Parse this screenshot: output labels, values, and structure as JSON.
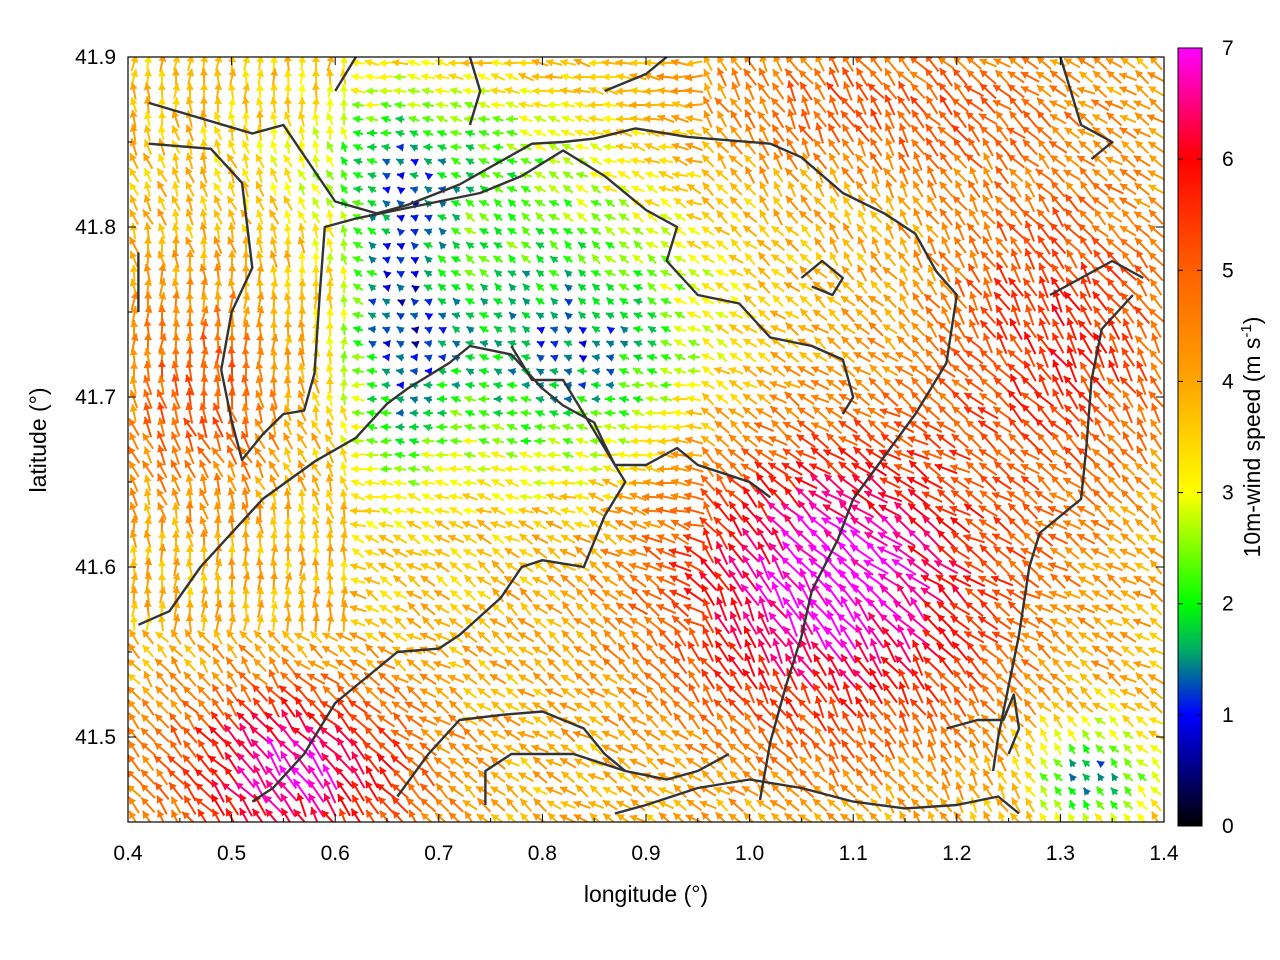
{
  "chart_data": {
    "type": "vector-field",
    "xlabel": "longitude (°)",
    "ylabel": "latitude (°)",
    "xlim": [
      0.4,
      1.4
    ],
    "ylim": [
      41.45,
      41.9
    ],
    "x_ticks": [
      "0.4",
      "0.5",
      "0.6",
      "0.7",
      "0.8",
      "0.9",
      "1.0",
      "1.1",
      "1.2",
      "1.3",
      "1.4"
    ],
    "y_ticks": [
      "41.5",
      "41.6",
      "41.7",
      "41.8",
      "41.9"
    ],
    "grid": false,
    "colorbar": {
      "label": "10m-wind speed (m s",
      "label_sup": "-1",
      "label_end": ")",
      "range": [
        0,
        7
      ],
      "ticks": [
        "0",
        "1",
        "2",
        "3",
        "4",
        "5",
        "6",
        "7"
      ],
      "palette": [
        {
          "value": 0,
          "color": "#000000"
        },
        {
          "value": 1,
          "color": "#0000ff"
        },
        {
          "value": 1.6,
          "color": "#00b060"
        },
        {
          "value": 2,
          "color": "#00ff00"
        },
        {
          "value": 3,
          "color": "#ffff00"
        },
        {
          "value": 4,
          "color": "#ffa500"
        },
        {
          "value": 5,
          "color": "#ff6000"
        },
        {
          "value": 6,
          "color": "#ff0000"
        },
        {
          "value": 7,
          "color": "#ff00ff"
        }
      ]
    },
    "contour_lines": [
      [
        [
          0.42,
          41.873
        ],
        [
          0.52,
          41.855
        ],
        [
          0.55,
          41.86
        ],
        [
          0.6,
          41.815
        ],
        [
          0.64,
          41.808
        ],
        [
          0.67,
          41.813
        ],
        [
          0.72,
          41.825
        ],
        [
          0.79,
          41.849
        ],
        [
          0.82,
          41.85
        ],
        [
          0.85,
          41.852
        ],
        [
          0.89,
          41.858
        ],
        [
          0.94,
          41.853
        ],
        [
          0.98,
          41.851
        ],
        [
          1.02,
          41.849
        ],
        [
          1.05,
          41.841
        ],
        [
          1.09,
          41.82
        ],
        [
          1.13,
          41.808
        ],
        [
          1.16,
          41.796
        ],
        [
          1.18,
          41.774
        ],
        [
          1.2,
          41.76
        ],
        [
          1.19,
          41.72
        ],
        [
          1.16,
          41.69
        ],
        [
          1.13,
          41.665
        ],
        [
          1.1,
          41.64
        ],
        [
          1.085,
          41.616
        ],
        [
          1.06,
          41.586
        ],
        [
          1.05,
          41.559
        ],
        [
          1.035,
          41.53
        ],
        [
          1.02,
          41.497
        ],
        [
          1.01,
          41.463
        ]
      ],
      [
        [
          0.42,
          41.849
        ],
        [
          0.48,
          41.846
        ],
        [
          0.51,
          41.826
        ],
        [
          0.52,
          41.776
        ],
        [
          0.5,
          41.75
        ],
        [
          0.49,
          41.716
        ],
        [
          0.5,
          41.686
        ],
        [
          0.51,
          41.663
        ],
        [
          0.53,
          41.678
        ],
        [
          0.55,
          41.69
        ],
        [
          0.57,
          41.692
        ],
        [
          0.58,
          41.714
        ],
        [
          0.585,
          41.76
        ],
        [
          0.59,
          41.8
        ],
        [
          0.62,
          41.805
        ],
        [
          0.66,
          41.81
        ],
        [
          0.7,
          41.815
        ],
        [
          0.74,
          41.82
        ],
        [
          0.78,
          41.83
        ],
        [
          0.82,
          41.845
        ],
        [
          0.86,
          41.83
        ],
        [
          0.9,
          41.81
        ],
        [
          0.93,
          41.8
        ],
        [
          0.92,
          41.78
        ],
        [
          0.95,
          41.76
        ],
        [
          0.99,
          41.755
        ],
        [
          1.02,
          41.735
        ],
        [
          1.06,
          41.73
        ],
        [
          1.09,
          41.722
        ],
        [
          1.1,
          41.7
        ],
        [
          1.09,
          41.69
        ]
      ],
      [
        [
          0.41,
          41.566
        ],
        [
          0.44,
          41.574
        ],
        [
          0.47,
          41.6
        ],
        [
          0.53,
          41.64
        ],
        [
          0.58,
          41.662
        ],
        [
          0.62,
          41.676
        ],
        [
          0.65,
          41.696
        ],
        [
          0.67,
          41.705
        ],
        [
          0.71,
          41.72
        ],
        [
          0.73,
          41.73
        ],
        [
          0.77,
          41.725
        ],
        [
          0.8,
          41.705
        ],
        [
          0.82,
          41.695
        ],
        [
          0.85,
          41.685
        ],
        [
          0.86,
          41.672
        ],
        [
          0.87,
          41.66
        ],
        [
          0.9,
          41.66
        ],
        [
          0.93,
          41.67
        ],
        [
          0.95,
          41.66
        ],
        [
          0.98,
          41.654
        ],
        [
          1.0,
          41.65
        ],
        [
          1.02,
          41.641
        ]
      ],
      [
        [
          0.52,
          41.462
        ],
        [
          0.54,
          41.47
        ],
        [
          0.57,
          41.49
        ],
        [
          0.6,
          41.52
        ],
        [
          0.62,
          41.53
        ],
        [
          0.66,
          41.55
        ],
        [
          0.7,
          41.552
        ],
        [
          0.72,
          41.56
        ],
        [
          0.76,
          41.582
        ],
        [
          0.78,
          41.6
        ],
        [
          0.8,
          41.604
        ],
        [
          0.84,
          41.6
        ],
        [
          0.86,
          41.63
        ],
        [
          0.88,
          41.65
        ],
        [
          0.85,
          41.68
        ],
        [
          0.82,
          41.71
        ],
        [
          0.79,
          41.71
        ],
        [
          0.77,
          41.73
        ]
      ],
      [
        [
          0.66,
          41.465
        ],
        [
          0.69,
          41.49
        ],
        [
          0.72,
          41.51
        ],
        [
          0.76,
          41.513
        ],
        [
          0.8,
          41.515
        ],
        [
          0.84,
          41.505
        ],
        [
          0.86,
          41.49
        ],
        [
          0.88,
          41.48
        ],
        [
          0.92,
          41.475
        ],
        [
          0.95,
          41.48
        ],
        [
          0.98,
          41.49
        ]
      ],
      [
        [
          0.745,
          41.46
        ],
        [
          0.745,
          41.48
        ],
        [
          0.77,
          41.49
        ],
        [
          0.83,
          41.49
        ],
        [
          0.88,
          41.48
        ]
      ],
      [
        [
          0.87,
          41.455
        ],
        [
          0.9,
          41.46
        ],
        [
          0.95,
          41.47
        ],
        [
          1.0,
          41.475
        ],
        [
          1.05,
          41.47
        ],
        [
          1.1,
          41.462
        ],
        [
          1.15,
          41.458
        ],
        [
          1.2,
          41.46
        ],
        [
          1.24,
          41.465
        ],
        [
          1.26,
          41.455
        ]
      ],
      [
        [
          1.19,
          41.505
        ],
        [
          1.22,
          41.51
        ],
        [
          1.245,
          41.51
        ],
        [
          1.255,
          41.525
        ],
        [
          1.26,
          41.505
        ],
        [
          1.25,
          41.49
        ]
      ],
      [
        [
          1.37,
          41.76
        ],
        [
          1.34,
          41.74
        ],
        [
          1.33,
          41.71
        ],
        [
          1.325,
          41.67
        ],
        [
          1.32,
          41.64
        ],
        [
          1.3,
          41.63
        ],
        [
          1.28,
          41.62
        ],
        [
          1.27,
          41.6
        ],
        [
          1.26,
          41.56
        ],
        [
          1.25,
          41.53
        ],
        [
          1.24,
          41.5
        ],
        [
          1.235,
          41.48
        ]
      ],
      [
        [
          1.38,
          41.77
        ],
        [
          1.35,
          41.78
        ],
        [
          1.32,
          41.77
        ],
        [
          1.29,
          41.76
        ]
      ],
      [
        [
          1.33,
          41.84
        ],
        [
          1.35,
          41.85
        ],
        [
          1.32,
          41.86
        ],
        [
          1.31,
          41.88
        ],
        [
          1.3,
          41.9
        ]
      ],
      [
        [
          0.41,
          41.785
        ],
        [
          0.41,
          41.75
        ]
      ],
      [
        [
          1.05,
          41.77
        ],
        [
          1.07,
          41.78
        ],
        [
          1.09,
          41.77
        ],
        [
          1.08,
          41.76
        ],
        [
          1.06,
          41.765
        ]
      ],
      [
        [
          0.6,
          41.88
        ],
        [
          0.62,
          41.9
        ]
      ],
      [
        [
          0.73,
          41.9
        ],
        [
          0.74,
          41.88
        ],
        [
          0.73,
          41.86
        ]
      ],
      [
        [
          0.86,
          41.88
        ],
        [
          0.9,
          41.89
        ],
        [
          0.92,
          41.9
        ]
      ]
    ]
  }
}
